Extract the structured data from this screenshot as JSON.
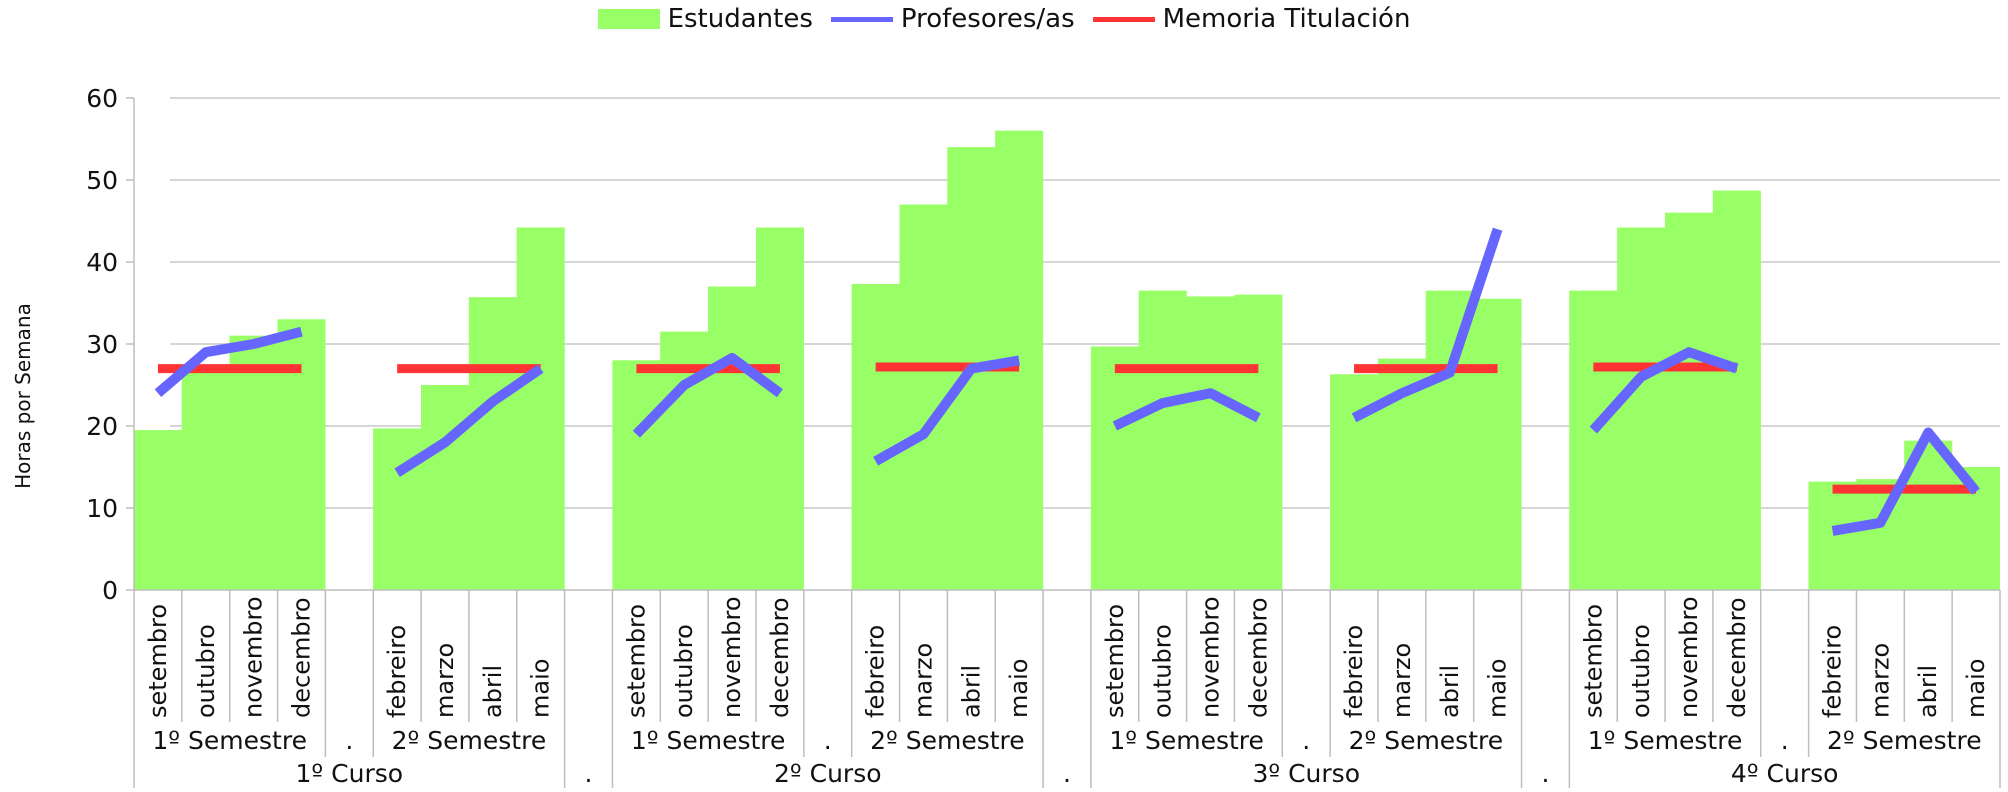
{
  "legend": {
    "students": "Estudantes",
    "teachers": "Profesores/as",
    "memoria": "Memoria Titulación"
  },
  "colors": {
    "students": "#99ff66",
    "teachers": "#6666ff",
    "memoria": "#ff3333"
  },
  "chart_data": {
    "type": "area",
    "ylabel": "Horas por Semana",
    "ylim": [
      0,
      60
    ],
    "yticks": [
      0,
      10,
      20,
      30,
      40,
      50,
      60
    ],
    "grid": true,
    "legend_position": "top",
    "separator_label": ".",
    "groups": [
      {
        "curso": "1º Curso",
        "semesters": [
          {
            "label": "1º Semestre",
            "months": [
              "setembro",
              "outubro",
              "novembro",
              "decembro"
            ],
            "estudantes": [
              19.5,
              26.5,
              31,
              33
            ],
            "profesores": [
              24,
              29,
              30,
              31.5
            ],
            "memoria": [
              27,
              27,
              27,
              27
            ]
          },
          {
            "label": "2º Semestre",
            "months": [
              "febreiro",
              "marzo",
              "abril",
              "maio"
            ],
            "estudantes": [
              19.7,
              25,
              35.7,
              44.2
            ],
            "profesores": [
              14.3,
              18,
              23,
              27
            ],
            "memoria": [
              27,
              27,
              27,
              27
            ]
          }
        ]
      },
      {
        "curso": "2º Curso",
        "semesters": [
          {
            "label": "1º Semestre",
            "months": [
              "setembro",
              "outubro",
              "novembro",
              "decembro"
            ],
            "estudantes": [
              28,
              31.5,
              37,
              44.2
            ],
            "profesores": [
              19,
              25,
              28.3,
              24
            ],
            "memoria": [
              27,
              27,
              27,
              27
            ]
          },
          {
            "label": "2º Semestre",
            "months": [
              "febreiro",
              "marzo",
              "abril",
              "maio"
            ],
            "estudantes": [
              37.3,
              47,
              54,
              56
            ],
            "profesores": [
              15.7,
              19,
              27,
              28
            ],
            "memoria": [
              27.2,
              27.2,
              27.2,
              27.2
            ]
          }
        ]
      },
      {
        "curso": "3º Curso",
        "semesters": [
          {
            "label": "1º Semestre",
            "months": [
              "setembro",
              "outubro",
              "novembro",
              "decembro"
            ],
            "estudantes": [
              29.7,
              36.5,
              35.8,
              36
            ],
            "profesores": [
              20,
              22.8,
              24,
              21
            ],
            "memoria": [
              27,
              27,
              27,
              27
            ]
          },
          {
            "label": "2º Semestre",
            "months": [
              "febreiro",
              "marzo",
              "abril",
              "maio"
            ],
            "estudantes": [
              26.3,
              28.2,
              36.5,
              35.5
            ],
            "profesores": [
              21,
              24,
              26.5,
              44
            ],
            "memoria": [
              27,
              27,
              27,
              27
            ]
          }
        ]
      },
      {
        "curso": "4º Curso",
        "semesters": [
          {
            "label": "1º Semestre",
            "months": [
              "setembro",
              "outubro",
              "novembro",
              "decembro"
            ],
            "estudantes": [
              36.5,
              44.2,
              46,
              48.7
            ],
            "profesores": [
              19.5,
              26,
              29,
              27
            ],
            "memoria": [
              27.2,
              27.2,
              27.2,
              27.2
            ]
          },
          {
            "label": "2º Semestre",
            "months": [
              "febreiro",
              "marzo",
              "abril",
              "maio"
            ],
            "estudantes": [
              13.2,
              13.5,
              18.2,
              15
            ],
            "profesores": [
              7.2,
              8.2,
              19.2,
              12
            ],
            "memoria": [
              12.3,
              12.3,
              12.3,
              12.3
            ]
          }
        ]
      }
    ]
  }
}
